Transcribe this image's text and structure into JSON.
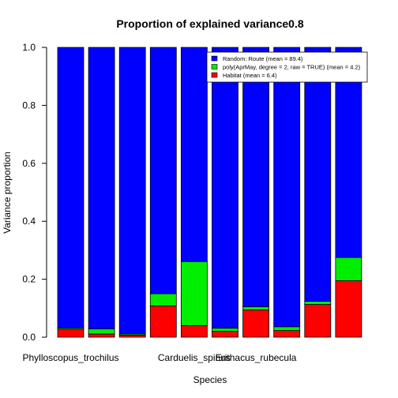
{
  "chart_data": {
    "type": "bar",
    "stacked": true,
    "title": "Proportion of explained variance0.8",
    "xlabel": "Species",
    "ylabel": "Variance proportion",
    "ylim": [
      0,
      1
    ],
    "yticks": [
      "0.0",
      "0.2",
      "0.4",
      "0.6",
      "0.8",
      "1.0"
    ],
    "ytick_values": [
      0,
      0.2,
      0.4,
      0.6,
      0.8,
      1.0
    ],
    "bar_count": 10,
    "xtick_labels": [
      {
        "bar": 1,
        "label": "Phylloscopus_trochilus"
      },
      {
        "bar": 5,
        "label": "Carduelis_spinus"
      },
      {
        "bar": 7,
        "label": "Erithacus_rubecula"
      }
    ],
    "legend_position": "top-right",
    "series": [
      {
        "name": "Habitat (mean = 6.4)",
        "color": "#ff0000",
        "values": [
          0.027,
          0.011,
          0.007,
          0.108,
          0.04,
          0.02,
          0.094,
          0.023,
          0.113,
          0.195
        ]
      },
      {
        "name": "poly(AprMay, degree = 2, raw = TRUE) (mean = 4.2)",
        "color": "#00ee00",
        "values": [
          0.004,
          0.018,
          0.004,
          0.042,
          0.221,
          0.011,
          0.011,
          0.013,
          0.011,
          0.08
        ]
      },
      {
        "name": "Random: Route (mean = 89.4)",
        "color": "#0000ff",
        "values": [
          0.969,
          0.971,
          0.989,
          0.85,
          0.739,
          0.969,
          0.895,
          0.964,
          0.876,
          0.725
        ]
      }
    ],
    "legend_order": [
      2,
      1,
      0
    ]
  }
}
